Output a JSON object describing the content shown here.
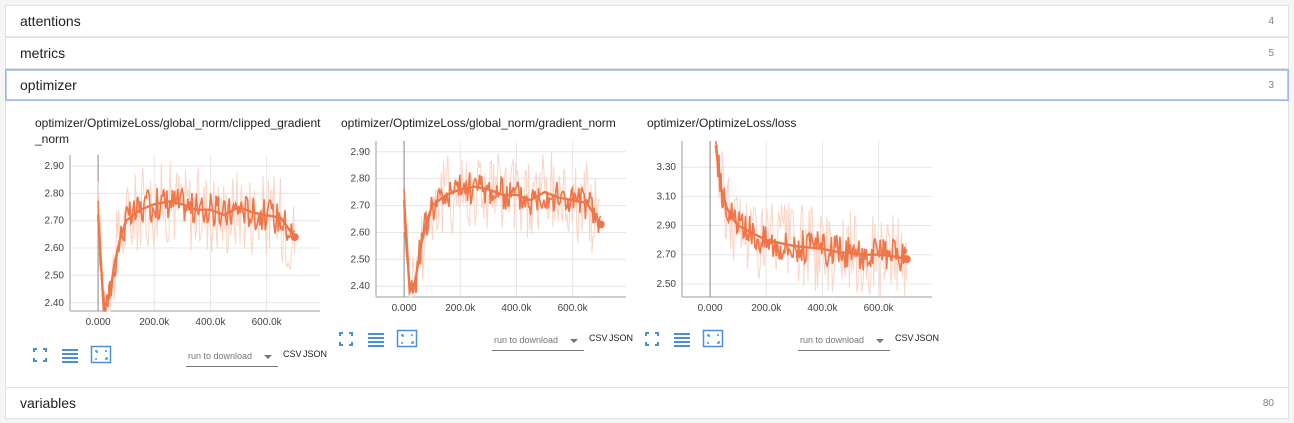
{
  "categories": [
    {
      "label": "attentions",
      "count": "4"
    },
    {
      "label": "metrics",
      "count": "5"
    },
    {
      "label": "optimizer",
      "count": "3"
    },
    {
      "label": "variables",
      "count": "80"
    }
  ],
  "download": {
    "run_placeholder": "run to download",
    "csv": "CSV",
    "json": "JSON"
  },
  "icons": {
    "expand": "fit-screen-icon",
    "log_scale": "list-lines-icon",
    "fit_domain": "fit-domain-icon"
  },
  "colors": {
    "series": "#f07548",
    "series_smooth_bg": "#f9d5c6",
    "accent": "#4a90d9",
    "axis": "#9e9e9e",
    "grid": "#e6e6e6"
  },
  "chart_data": [
    {
      "type": "line",
      "title": "optimizer/OptimizeLoss/global_norm/clipped_gradient_norm",
      "x_ticks": [
        "0.000",
        "200.0k",
        "400.0k",
        "600.0k"
      ],
      "y_ticks": [
        "2.40",
        "2.50",
        "2.60",
        "2.70",
        "2.80",
        "2.90"
      ],
      "xlim": [
        -100000,
        790000
      ],
      "ylim": [
        2.37,
        2.94
      ],
      "x": [
        0,
        20000,
        40000,
        60000,
        80000,
        100000,
        150000,
        200000,
        250000,
        300000,
        350000,
        400000,
        450000,
        500000,
        550000,
        600000,
        650000,
        700000
      ],
      "y": [
        2.72,
        2.38,
        2.42,
        2.55,
        2.64,
        2.7,
        2.74,
        2.76,
        2.77,
        2.76,
        2.74,
        2.74,
        2.72,
        2.75,
        2.73,
        2.72,
        2.71,
        2.64
      ],
      "grid": true
    },
    {
      "type": "line",
      "title": "optimizer/OptimizeLoss/global_norm/gradient_norm",
      "x_ticks": [
        "0.000",
        "200.0k",
        "400.0k",
        "600.0k"
      ],
      "y_ticks": [
        "2.40",
        "2.50",
        "2.60",
        "2.70",
        "2.80",
        "2.90"
      ],
      "xlim": [
        -100000,
        790000
      ],
      "ylim": [
        2.36,
        2.94
      ],
      "x": [
        0,
        20000,
        40000,
        60000,
        80000,
        100000,
        150000,
        200000,
        250000,
        300000,
        350000,
        400000,
        450000,
        500000,
        550000,
        600000,
        650000,
        700000
      ],
      "y": [
        2.72,
        2.38,
        2.42,
        2.55,
        2.64,
        2.7,
        2.74,
        2.76,
        2.77,
        2.76,
        2.74,
        2.74,
        2.72,
        2.75,
        2.73,
        2.72,
        2.71,
        2.63
      ],
      "grid": true
    },
    {
      "type": "line",
      "title": "optimizer/OptimizeLoss/loss",
      "x_ticks": [
        "0.000",
        "200.0k",
        "400.0k",
        "600.0k"
      ],
      "y_ticks": [
        "2.50",
        "2.70",
        "2.90",
        "3.10",
        "3.30"
      ],
      "xlim": [
        -100000,
        790000
      ],
      "ylim": [
        2.41,
        3.48
      ],
      "x": [
        20000,
        40000,
        60000,
        80000,
        100000,
        150000,
        200000,
        250000,
        300000,
        350000,
        400000,
        450000,
        500000,
        550000,
        600000,
        650000,
        700000
      ],
      "y": [
        3.45,
        3.15,
        3.02,
        2.95,
        2.9,
        2.85,
        2.8,
        2.78,
        2.76,
        2.75,
        2.74,
        2.72,
        2.71,
        2.7,
        2.7,
        2.69,
        2.67
      ],
      "grid": true
    }
  ]
}
